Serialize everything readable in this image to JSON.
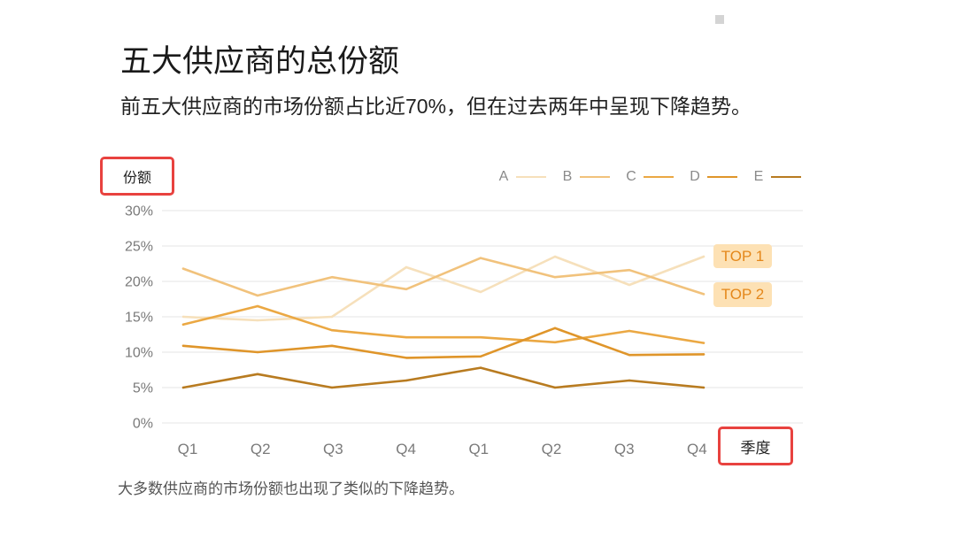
{
  "colors": {
    "axis_label_highlight": "#e8423f",
    "annotation_fill": "#fde1b4",
    "annotation_text": "#e4871a"
  },
  "chart_data": {
    "type": "line",
    "title": "五大供应商的总份额",
    "subtitle": "前五大供应商的市场份额占比近70%，但在过去两年中呈现下降趋势。",
    "note": "大多数供应商的市场份额也出现了类似的下降趋势。",
    "ylabel": "份额",
    "xlabel": "季度",
    "categories": [
      "Q1",
      "Q2",
      "Q3",
      "Q4",
      "Q1",
      "Q2",
      "Q3",
      "Q4"
    ],
    "y_ticks": [
      "0%",
      "5%",
      "10%",
      "15%",
      "20%",
      "25%",
      "30%"
    ],
    "ylim": [
      0,
      30
    ],
    "grid": true,
    "legend_position": "top-right",
    "series": [
      {
        "name": "A",
        "color": "#f6e0bb",
        "values": [
          15.0,
          14.5,
          15.0,
          22.0,
          18.5,
          23.5,
          19.5,
          23.5
        ]
      },
      {
        "name": "B",
        "color": "#f1c27c",
        "values": [
          21.8,
          18.0,
          20.6,
          18.9,
          23.3,
          20.6,
          21.6,
          18.2
        ]
      },
      {
        "name": "C",
        "color": "#eba843",
        "values": [
          13.9,
          16.5,
          13.1,
          12.1,
          12.1,
          11.4,
          13.0,
          11.3
        ]
      },
      {
        "name": "D",
        "color": "#df952a",
        "values": [
          10.9,
          10.0,
          10.9,
          9.2,
          9.4,
          13.4,
          9.6,
          9.7
        ]
      },
      {
        "name": "E",
        "color": "#b87b20",
        "values": [
          5.0,
          6.9,
          5.0,
          6.0,
          7.8,
          5.0,
          6.0,
          5.0
        ]
      }
    ],
    "annotations": [
      {
        "text": "TOP 1",
        "series_index": 0
      },
      {
        "text": "TOP 2",
        "series_index": 1
      }
    ]
  }
}
